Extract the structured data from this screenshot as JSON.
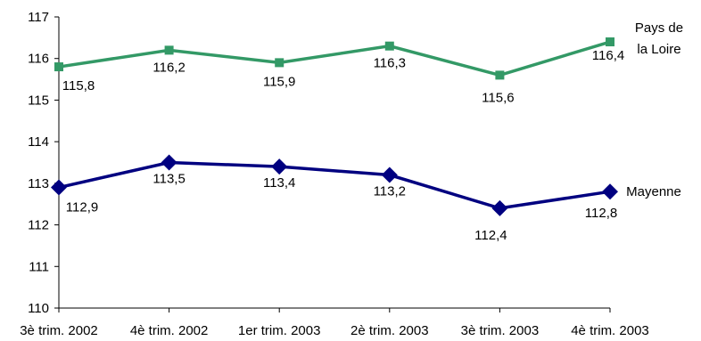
{
  "chart_data": {
    "type": "line",
    "categories": [
      "3è trim. 2002",
      "4è trim. 2002",
      "1er trim. 2003",
      "2è trim. 2003",
      "3è trim. 2003",
      "4è trim. 2003"
    ],
    "ylim": [
      110,
      117
    ],
    "y_ticks": [
      "110",
      "111",
      "112",
      "113",
      "114",
      "115",
      "116",
      "117"
    ],
    "grid": false,
    "series": [
      {
        "name_lines": [
          "Pays de",
          "la Loire"
        ],
        "values": [
          115.8,
          116.2,
          115.9,
          116.3,
          115.6,
          116.4
        ],
        "labels": [
          "115,8",
          "116,2",
          "115,9",
          "116,3",
          "115,6",
          "116,4"
        ],
        "color": "#339966",
        "marker": "square"
      },
      {
        "name_lines": [
          "Mayenne"
        ],
        "values": [
          112.9,
          113.5,
          113.4,
          113.2,
          112.4,
          112.8
        ],
        "labels": [
          "112,9",
          "113,5",
          "113,4",
          "113,2",
          "112,4",
          "112,8"
        ],
        "color": "#000080",
        "marker": "diamond"
      }
    ]
  }
}
